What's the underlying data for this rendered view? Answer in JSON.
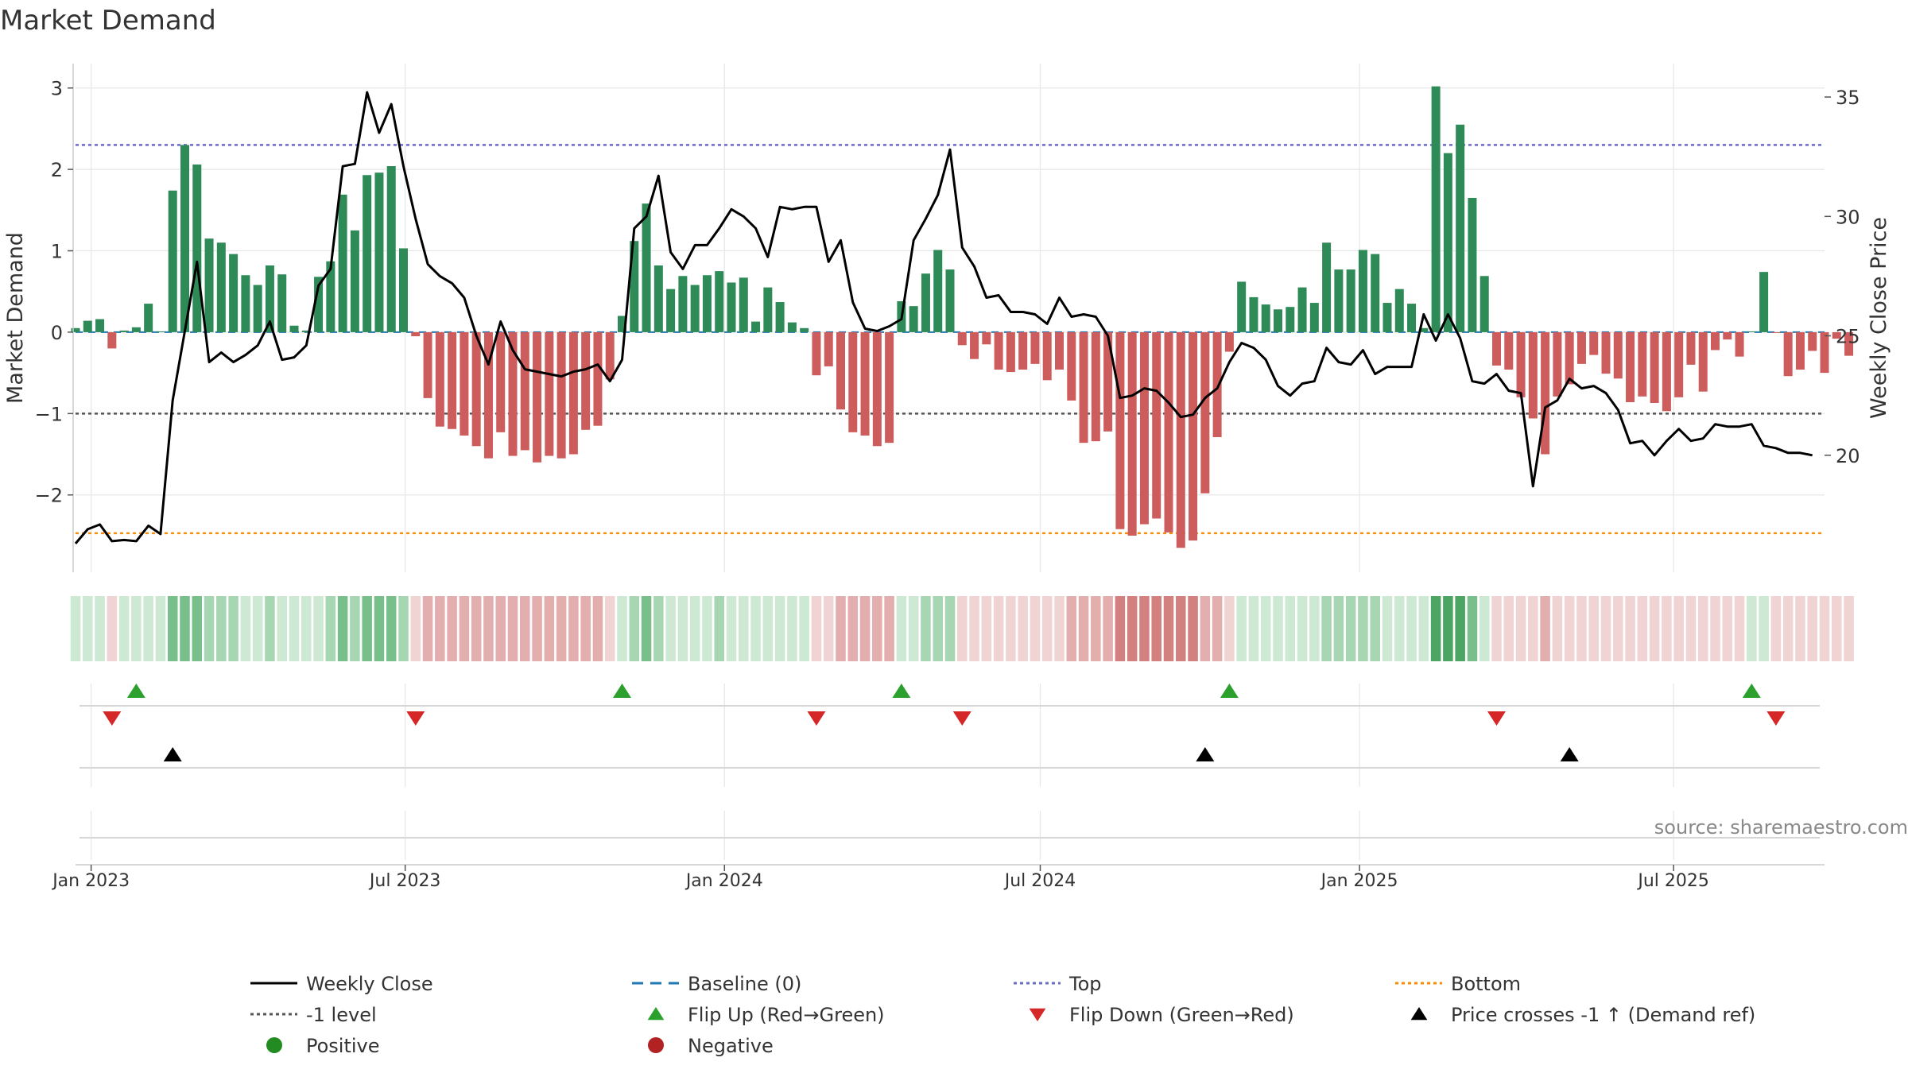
{
  "title": "Market Demand",
  "source": "source: sharemaestro.com",
  "colors": {
    "positive": "#2e8b57",
    "negative": "#cd5c5c",
    "price": "#000000",
    "top": "#6a6acd",
    "bottom": "#ff8c00",
    "level": "#555555",
    "flip_up": "#2ca02c",
    "flip_down": "#d62728",
    "cross": "#000000",
    "grid": "#e6e6e6"
  },
  "chart_data": {
    "type": "bar",
    "title": "Market Demand",
    "ylabel": "Market Demand",
    "y2label": "Weekly Close Price",
    "ylim": [
      -2.95,
      3.3
    ],
    "y2lim": [
      15.1,
      36.4
    ],
    "yticks": [
      3,
      2,
      1,
      0,
      -1,
      -2
    ],
    "ytick_labels": [
      "3",
      "2",
      "1",
      "0",
      "−1",
      "−2"
    ],
    "y2ticks": [
      35,
      30,
      25,
      20
    ],
    "y2tick_labels": [
      "35",
      "30",
      "25",
      "20"
    ],
    "x_start": "2022-12-23",
    "x_step_days": 7,
    "x_range_days": [
      0,
      1008
    ],
    "xticks": [
      {
        "day": 9,
        "label": "Jan 2023"
      },
      {
        "day": 190,
        "label": "Jul 2023"
      },
      {
        "day": 374,
        "label": "Jan 2024"
      },
      {
        "day": 556,
        "label": "Jul 2024"
      },
      {
        "day": 740,
        "label": "Jan 2025"
      },
      {
        "day": 921,
        "label": "Jul 2025"
      }
    ],
    "levels": {
      "top": 2.3,
      "level_minus_1": -1.0,
      "bottom": -2.47,
      "baseline": 0
    },
    "series": [
      {
        "name": "Market Demand",
        "values": [
          0.05,
          0.14,
          0.16,
          -0.2,
          0.02,
          0.06,
          0.35,
          0.01,
          1.74,
          2.3,
          2.06,
          1.15,
          1.1,
          0.96,
          0.7,
          0.58,
          0.82,
          0.71,
          0.08,
          0.02,
          0.68,
          0.87,
          1.69,
          1.25,
          1.93,
          1.96,
          2.04,
          1.03,
          -0.05,
          -0.81,
          -1.16,
          -1.19,
          -1.27,
          -1.4,
          -1.55,
          -1.23,
          -1.52,
          -1.45,
          -1.6,
          -1.52,
          -1.55,
          -1.5,
          -1.2,
          -1.15,
          -0.58,
          0.2,
          1.12,
          1.58,
          0.82,
          0.53,
          0.69,
          0.58,
          0.7,
          0.75,
          0.61,
          0.67,
          0.13,
          0.55,
          0.37,
          0.12,
          0.05,
          -0.53,
          -0.42,
          -0.95,
          -1.23,
          -1.27,
          -1.4,
          -1.36,
          0.38,
          0.32,
          0.72,
          1.01,
          0.77,
          -0.16,
          -0.33,
          -0.15,
          -0.46,
          -0.49,
          -0.46,
          -0.39,
          -0.59,
          -0.46,
          -0.84,
          -1.36,
          -1.34,
          -1.22,
          -2.42,
          -2.5,
          -2.36,
          -2.29,
          -2.46,
          -2.65,
          -2.56,
          -1.98,
          -1.29,
          -0.24,
          0.62,
          0.43,
          0.34,
          0.28,
          0.31,
          0.55,
          0.36,
          1.1,
          0.77,
          0.77,
          1.01,
          0.96,
          0.36,
          0.53,
          0.35,
          0.05,
          3.02,
          2.2,
          2.55,
          1.65,
          0.69,
          -0.41,
          -0.46,
          -0.8,
          -1.06,
          -1.5,
          -0.79,
          -0.64,
          -0.39,
          -0.28,
          -0.51,
          -0.57,
          -0.86,
          -0.79,
          -0.87,
          -0.97,
          -0.8,
          -0.4,
          -0.73,
          -0.22,
          -0.09,
          -0.3,
          0.01,
          0.74,
          -0.01,
          -0.54,
          -0.46,
          -0.23,
          -0.5,
          -0.08,
          -0.29
        ]
      },
      {
        "name": "Weekly Close",
        "values": [
          16.3,
          16.9,
          17.1,
          16.4,
          16.45,
          16.4,
          17.05,
          16.7,
          22.3,
          25.2,
          28.1,
          23.9,
          24.3,
          23.9,
          24.2,
          24.6,
          25.6,
          24.0,
          24.1,
          24.6,
          27.1,
          27.8,
          32.1,
          32.2,
          35.2,
          33.5,
          34.7,
          32.1,
          29.9,
          28.0,
          27.5,
          27.2,
          26.6,
          25.0,
          23.8,
          25.6,
          24.4,
          23.6,
          23.5,
          23.4,
          23.3,
          23.5,
          23.6,
          23.8,
          23.1,
          24.0,
          29.5,
          30.0,
          31.7,
          28.5,
          27.8,
          28.8,
          28.8,
          29.5,
          30.3,
          30.0,
          29.5,
          28.3,
          30.4,
          30.3,
          30.4,
          30.4,
          28.1,
          29.0,
          26.4,
          25.3,
          25.2,
          25.4,
          25.7,
          29.0,
          29.9,
          30.9,
          32.8,
          28.7,
          27.9,
          26.6,
          26.7,
          26.0,
          26.0,
          25.9,
          25.5,
          26.6,
          25.8,
          25.9,
          25.8,
          25.0,
          22.4,
          22.5,
          22.8,
          22.7,
          22.2,
          21.6,
          21.7,
          22.4,
          22.8,
          23.9,
          24.7,
          24.5,
          24.0,
          22.9,
          22.5,
          23.0,
          23.1,
          24.5,
          23.9,
          23.8,
          24.4,
          23.4,
          23.7,
          23.7,
          23.7,
          25.9,
          24.8,
          25.9,
          24.9,
          23.1,
          23.0,
          23.4,
          22.7,
          22.6,
          18.7,
          22.0,
          22.3,
          23.2,
          22.8,
          22.9,
          22.6,
          21.9,
          20.5,
          20.6,
          20.0,
          20.6,
          21.1,
          20.6,
          20.7,
          21.3,
          21.2,
          21.2,
          21.3,
          20.4,
          20.3,
          20.1,
          20.1,
          20.0
        ]
      }
    ],
    "heat_strip": [
      1,
      1,
      1,
      -1,
      1,
      1,
      1,
      1,
      3,
      3,
      3,
      2,
      2,
      2,
      1,
      1,
      2,
      1,
      1,
      1,
      1,
      2,
      3,
      2,
      3,
      3,
      3,
      2,
      -1,
      -2,
      -2,
      -2,
      -2,
      -2,
      -2,
      -2,
      -2,
      -2,
      -2,
      -2,
      -2,
      -2,
      -2,
      -2,
      -1,
      1,
      2,
      3,
      2,
      1,
      1,
      1,
      1,
      2,
      1,
      1,
      1,
      1,
      1,
      1,
      1,
      -1,
      -1,
      -2,
      -2,
      -2,
      -2,
      -2,
      1,
      1,
      2,
      2,
      2,
      -1,
      -1,
      -1,
      -1,
      -1,
      -1,
      -1,
      -1,
      -1,
      -2,
      -2,
      -2,
      -2,
      -3,
      -3,
      -3,
      -3,
      -3,
      -3,
      -3,
      -2,
      -2,
      -1,
      1,
      1,
      1,
      1,
      1,
      1,
      1,
      2,
      2,
      2,
      2,
      2,
      1,
      1,
      1,
      1,
      4,
      4,
      4,
      3,
      1,
      -1,
      -1,
      -1,
      -1,
      -2,
      -1,
      -1,
      -1,
      -1,
      -1,
      -1,
      -1,
      -1,
      -1,
      -1,
      -1,
      -1,
      -1,
      -1,
      -1,
      -1,
      1,
      1,
      -1,
      -1,
      -1,
      -1,
      -1,
      -1,
      -1
    ],
    "flip_up_weeks": [
      5,
      45,
      68,
      95,
      138
    ],
    "flip_down_weeks": [
      3,
      28,
      61,
      73,
      117,
      140
    ],
    "cross_weeks": [
      8,
      93,
      123
    ]
  },
  "legend": {
    "items": [
      {
        "label": "Weekly Close",
        "symbol": "line-solid",
        "color": "#000000"
      },
      {
        "label": "Baseline (0)",
        "symbol": "line-dashed",
        "color": "#1f77b4"
      },
      {
        "label": "Top",
        "symbol": "line-dotted",
        "color": "#6a6acd"
      },
      {
        "label": "Bottom",
        "symbol": "line-dotted",
        "color": "#ff8c00"
      },
      {
        "label": "-1 level",
        "symbol": "line-dotted",
        "color": "#555555"
      },
      {
        "label": "Flip Up (Red→Green)",
        "symbol": "triangle-up",
        "color": "#2ca02c"
      },
      {
        "label": "Flip Down (Green→Red)",
        "symbol": "triangle-down",
        "color": "#d62728"
      },
      {
        "label": "Price crosses -1 ↑ (Demand ref)",
        "symbol": "triangle-up",
        "color": "#000000"
      },
      {
        "label": "Positive",
        "symbol": "circle",
        "color": "#228b22"
      },
      {
        "label": "Negative",
        "symbol": "circle",
        "color": "#b22222"
      }
    ]
  }
}
